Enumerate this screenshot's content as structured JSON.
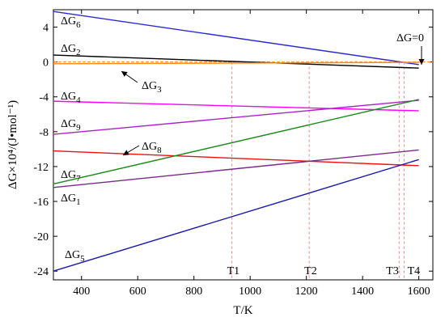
{
  "chart_data": {
    "type": "line",
    "xlabel": "T/K",
    "ylabel": "ΔG×10⁴/(J•mol⁻¹)",
    "xlim": [
      300,
      1650
    ],
    "ylim": [
      -25,
      6
    ],
    "xticks": [
      400,
      600,
      800,
      1000,
      1200,
      1400,
      1600
    ],
    "yticks": [
      4,
      0,
      -4,
      -8,
      -12,
      -16,
      -20,
      -24
    ],
    "grid": false,
    "colors": {
      "dG1": "#7a2a8a",
      "dG2": "#000000",
      "dG3": "#ff8c1a",
      "dG4": "#ff00ff",
      "dG5": "#1a1aaa",
      "dG6": "#2a2ad4",
      "dG7": "#1a8a1a",
      "dG8": "#ee1111",
      "dG9": "#aa22cc",
      "zero_line": "#ff8c1a",
      "marker_line": "#ff8080"
    },
    "series": [
      {
        "name": "ΔG6",
        "key": "dG6",
        "x": [
          300,
          1600
        ],
        "y": [
          5.8,
          -0.3
        ]
      },
      {
        "name": "ΔG2",
        "key": "dG2",
        "x": [
          300,
          1600
        ],
        "y": [
          0.8,
          -0.7
        ]
      },
      {
        "name": "ΔG3",
        "key": "dG3",
        "x": [
          300,
          1600
        ],
        "y": [
          -0.2,
          -0.05
        ]
      },
      {
        "name": "ΔG4",
        "key": "dG4",
        "x": [
          300,
          1600
        ],
        "y": [
          -4.5,
          -5.6
        ]
      },
      {
        "name": "ΔG9",
        "key": "dG9",
        "x": [
          300,
          1600
        ],
        "y": [
          -8.3,
          -4.4
        ]
      },
      {
        "name": "ΔG8",
        "key": "dG8",
        "x": [
          300,
          1600
        ],
        "y": [
          -10.2,
          -11.9
        ]
      },
      {
        "name": "ΔG7",
        "key": "dG7",
        "x": [
          300,
          1600
        ],
        "y": [
          -14.0,
          -4.3
        ]
      },
      {
        "name": "ΔG1",
        "key": "dG1",
        "x": [
          300,
          1600
        ],
        "y": [
          -14.4,
          -10.1
        ]
      },
      {
        "name": "ΔG5",
        "key": "dG5",
        "x": [
          300,
          1600
        ],
        "y": [
          -24.0,
          -11.2
        ]
      }
    ],
    "zero_line": {
      "label": "ΔG=0",
      "y": 0
    },
    "markers": [
      {
        "label": "T1",
        "x": 935
      },
      {
        "label": "T2",
        "x": 1210
      },
      {
        "label": "T3",
        "x": 1530
      },
      {
        "label": "T4",
        "x": 1548
      }
    ]
  }
}
